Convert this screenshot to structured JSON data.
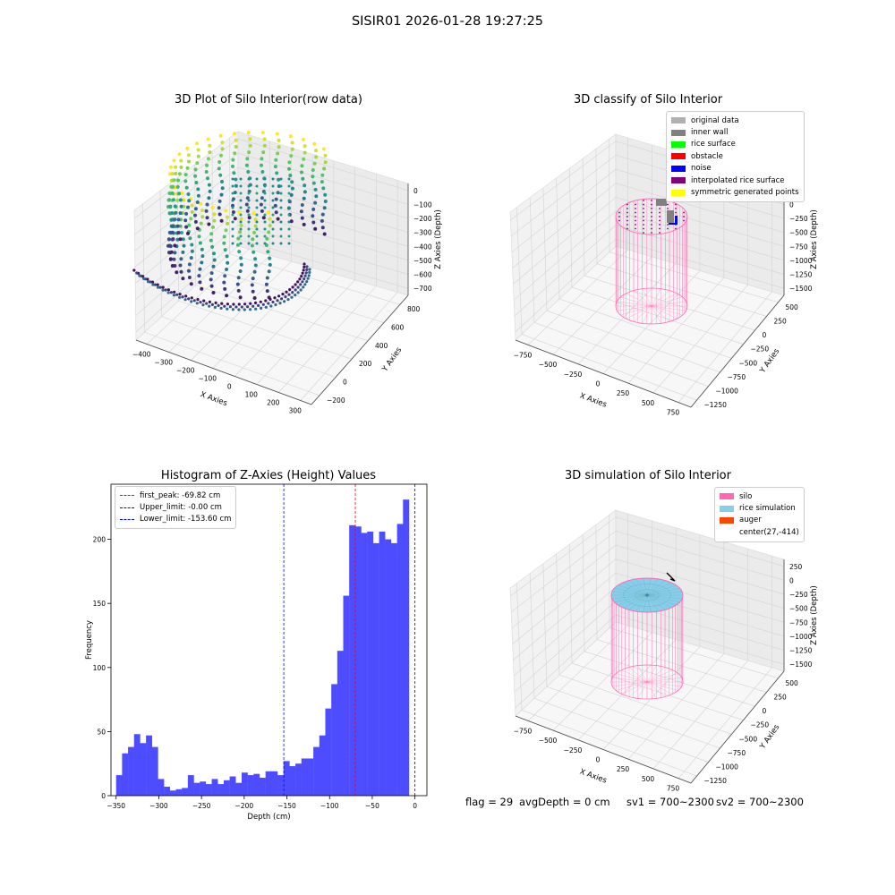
{
  "figure": {
    "title": "SISIR01 2026-01-28 19:27:25"
  },
  "footer": {
    "flag": "flag = 29",
    "avg_depth": "avgDepth = 0 cm",
    "sv1": "sv1 = 700~2300",
    "sv2": "sv2 = 700~2300"
  },
  "chart_data": [
    {
      "type": "scatter",
      "projection": "3d",
      "title": "3D Plot of Silo Interior(row data)",
      "xlabel": "X Axies",
      "ylabel": "Y Axies",
      "zlabel": "Z Axies (Depth)",
      "x_ticks": [
        "−400",
        "−300",
        "−200",
        "−100",
        "0",
        "100",
        "200",
        "300"
      ],
      "y_ticks": [
        "−200",
        "0",
        "200",
        "400",
        "600",
        "800"
      ],
      "z_ticks": [
        "0",
        "−100",
        "−200",
        "−300",
        "−400",
        "−500",
        "−600",
        "−700"
      ],
      "xlim": [
        -420,
        310
      ],
      "ylim": [
        -220,
        820
      ],
      "zlim": [
        -720,
        40
      ],
      "colormap": [
        "#440154",
        "#3b528b",
        "#21918c",
        "#5ec962",
        "#fde725"
      ],
      "grid": true
    },
    {
      "type": "scatter",
      "projection": "3d",
      "title": "3D classify of Silo Interior",
      "xlabel": "X Axies",
      "ylabel": "Y Axies",
      "zlabel": "Z Axies (Depth)",
      "x_ticks": [
        "−750",
        "−500",
        "−250",
        "0",
        "250",
        "500",
        "750"
      ],
      "y_ticks": [
        "−1250",
        "−1000",
        "−750",
        "−500",
        "−250",
        "0",
        "250",
        "500"
      ],
      "z_ticks": [
        "250",
        "0",
        "−250",
        "−500",
        "−750",
        "−1000",
        "−1250",
        "−1500"
      ],
      "legend_position": "top-right",
      "legend": [
        {
          "label": "original data",
          "color": "#b0b0b0"
        },
        {
          "label": "inner wall",
          "color": "#808080"
        },
        {
          "label": "rice surface",
          "color": "#00ff00"
        },
        {
          "label": "obstacle",
          "color": "#ff0000"
        },
        {
          "label": "noise",
          "color": "#0000ff"
        },
        {
          "label": "interpolated rice surface",
          "color": "#800080"
        },
        {
          "label": "symmetric generated points",
          "color": "#ffff00"
        }
      ],
      "grid": true
    },
    {
      "type": "bar",
      "title": "Histogram of Z-Axies (Height) Values",
      "xlabel": "Depth (cm)",
      "ylabel": "Frequency",
      "x_ticks": [
        -350,
        -300,
        -250,
        -200,
        -150,
        -100,
        -50,
        0
      ],
      "y_ticks": [
        0,
        50,
        100,
        150,
        200
      ],
      "xlim": [
        -356,
        14
      ],
      "ylim": [
        0,
        243
      ],
      "bin_start": -350,
      "bin_width": 7,
      "values": [
        16,
        33,
        38,
        48,
        41,
        47,
        38,
        13,
        7,
        4,
        5,
        6,
        16,
        10,
        11,
        9,
        13,
        9,
        12,
        15,
        10,
        18,
        16,
        17,
        14,
        19,
        19,
        16,
        27,
        23,
        25,
        29,
        29,
        38,
        47,
        68,
        87,
        113,
        156,
        211,
        210,
        205,
        206,
        197,
        206,
        200,
        197,
        212,
        231
      ],
      "bar_color": "#4d4dff",
      "lines": [
        {
          "label": "first_peak: -69.82 cm",
          "x": -69.82,
          "color": "#ff0000"
        },
        {
          "label": "Upper_limit: -0.00 cm",
          "x": -0.0,
          "color": "#0000ff"
        },
        {
          "label": "Lower_limit: -153.60 cm",
          "x": -153.6,
          "color": "#0000ff"
        }
      ],
      "legend_position": "top-left",
      "grid": false
    },
    {
      "type": "scatter",
      "projection": "3d",
      "title": "3D simulation of Silo Interior",
      "xlabel": "X Axies",
      "ylabel": "Y Axies",
      "zlabel": "Z Axies (Depth)",
      "x_ticks": [
        "−750",
        "−500",
        "−250",
        "0",
        "250",
        "500",
        "750"
      ],
      "y_ticks": [
        "−1250",
        "−1000",
        "−750",
        "−500",
        "−250",
        "0",
        "250",
        "500"
      ],
      "z_ticks": [
        "250",
        "0",
        "−250",
        "−500",
        "−750",
        "−1000",
        "−1250",
        "−1500"
      ],
      "legend_position": "top-right",
      "legend": [
        {
          "label": "silo",
          "color": "#ff69b4"
        },
        {
          "label": "rice simulation",
          "color": "#87ceeb"
        },
        {
          "label": "auger",
          "color": "#ff4500"
        },
        {
          "label": "center(27,-414)",
          "color": ""
        }
      ],
      "grid": true
    }
  ]
}
